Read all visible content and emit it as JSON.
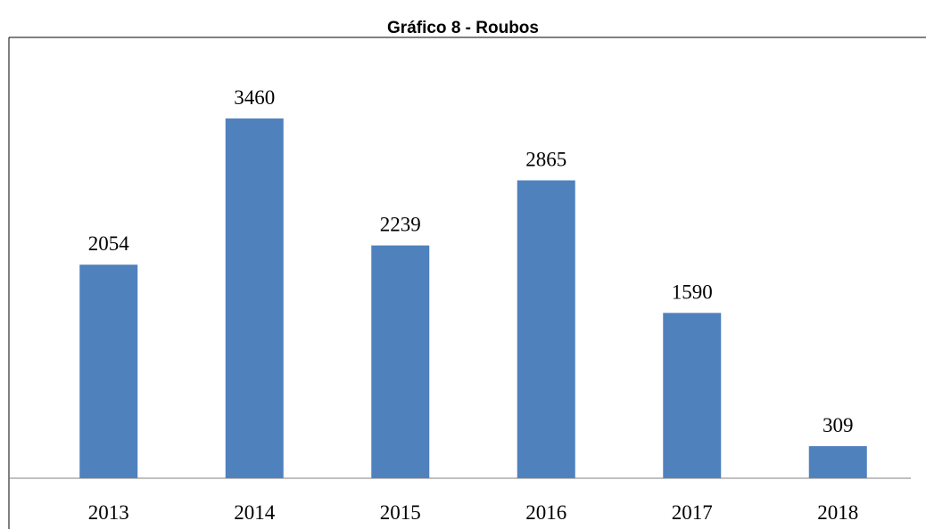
{
  "chart_data": {
    "type": "bar",
    "title": "Gráfico 8 - Roubos",
    "categories": [
      "2013",
      "2014",
      "2015",
      "2016",
      "2017",
      "2018"
    ],
    "values": [
      2054,
      3460,
      2239,
      2865,
      1590,
      309
    ],
    "color": "#4f81bd",
    "ylim": [
      0,
      4000
    ]
  }
}
